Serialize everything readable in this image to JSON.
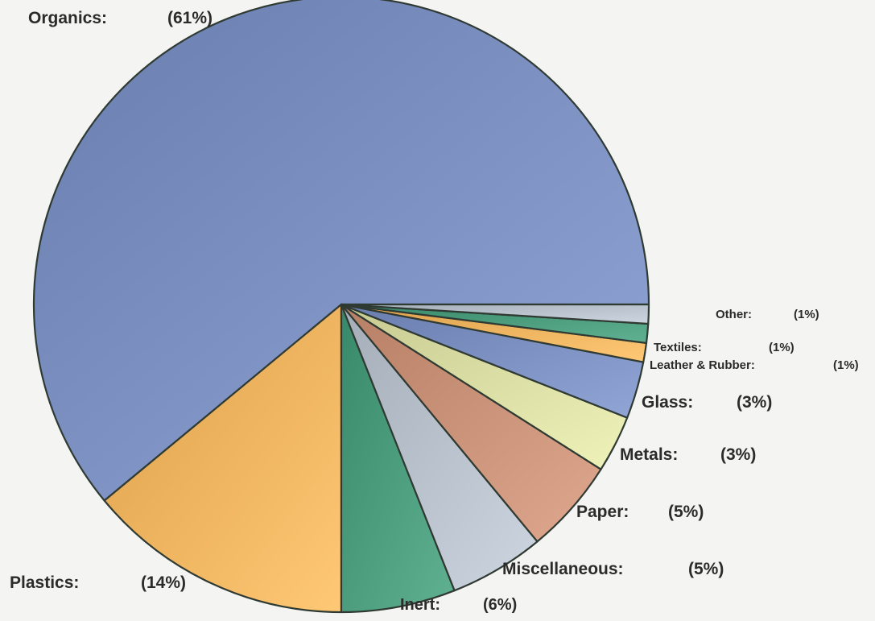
{
  "chart_data": {
    "type": "pie",
    "title": "",
    "slices": [
      {
        "label": "Organics:",
        "pct_label": "(61%)",
        "value": 61,
        "color": "#7b8fc0"
      },
      {
        "label": "Plastics:",
        "pct_label": "(14%)",
        "value": 14,
        "color": "#efb25e"
      },
      {
        "label": "Inert:",
        "pct_label": "(6%)",
        "value": 6,
        "color": "#4a9a7c"
      },
      {
        "label": "Miscellaneous:",
        "pct_label": "(5%)",
        "value": 5,
        "color": "#b7c0ca"
      },
      {
        "label": "Paper:",
        "pct_label": "(5%)",
        "value": 5,
        "color": "#c99278"
      },
      {
        "label": "Metals:",
        "pct_label": "(3%)",
        "value": 3,
        "color": "#d9dca3"
      },
      {
        "label": "Glass:",
        "pct_label": "(3%)",
        "value": 3,
        "color": "#7b8fc0"
      },
      {
        "label": "Leather & Rubber:",
        "pct_label": "(1%)",
        "value": 1,
        "color": "#efb25e"
      },
      {
        "label": "Textiles:",
        "pct_label": "(1%)",
        "value": 1,
        "color": "#4a9a7c"
      },
      {
        "label": "Other:",
        "pct_label": "(1%)",
        "value": 1,
        "color": "#b7c0ca"
      }
    ]
  }
}
